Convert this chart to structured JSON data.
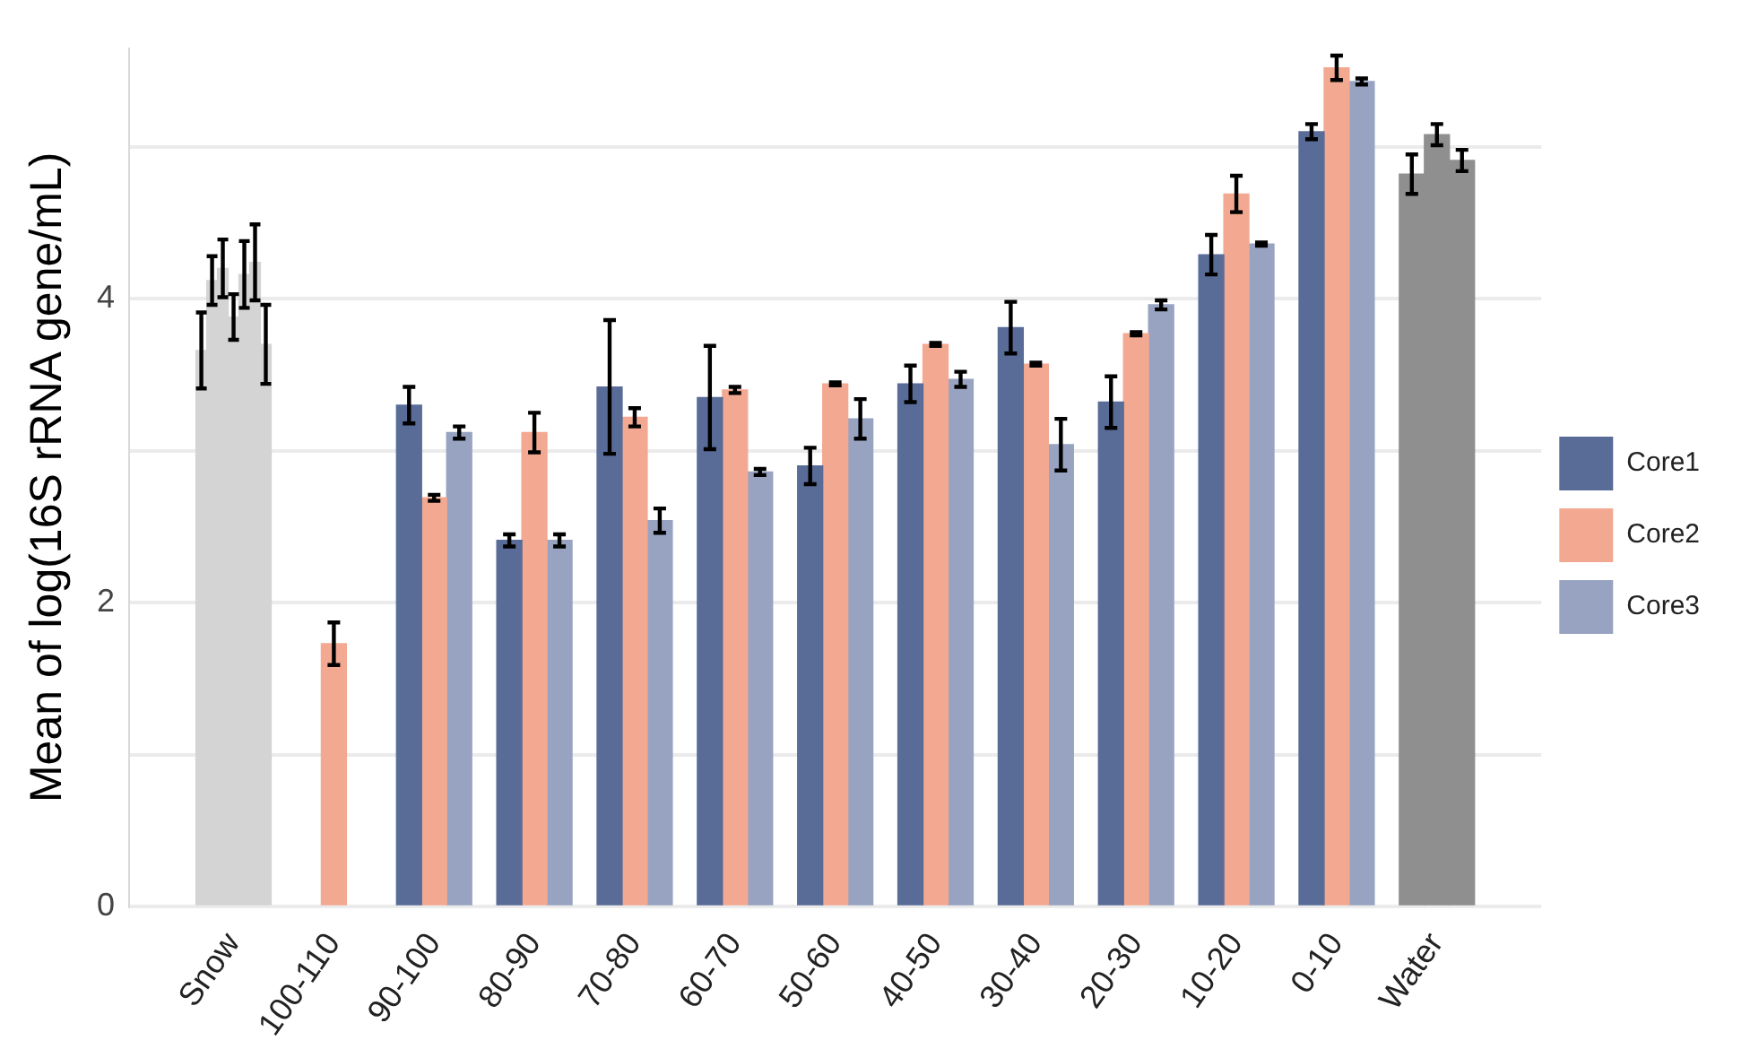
{
  "chart_data": {
    "type": "bar",
    "ylabel": "Mean of log(16S rRNA gene/mL)",
    "categories": [
      "Snow",
      "100-110",
      "90-100",
      "80-90",
      "70-80",
      "60-70",
      "50-60",
      "40-50",
      "30-40",
      "20-30",
      "10-20",
      "0-10",
      "Water"
    ],
    "series": [
      {
        "name": "Core1",
        "color": "#596c98",
        "colors": [
          null,
          null,
          "#596c98",
          "#596c98",
          "#596c98",
          "#596c98",
          "#596c98",
          "#596c98",
          "#596c98",
          "#596c98",
          "#596c98",
          "#596c98",
          "#8f8f8f"
        ],
        "values": [
          null,
          null,
          3.3,
          2.41,
          3.42,
          3.35,
          2.9,
          3.44,
          3.81,
          3.32,
          4.29,
          5.1,
          4.82
        ],
        "errors": [
          null,
          null,
          0.12,
          0.04,
          0.44,
          0.34,
          0.12,
          0.12,
          0.17,
          0.17,
          0.13,
          0.05,
          0.13
        ]
      },
      {
        "name": "Core2",
        "color": "#f3a991",
        "colors": [
          null,
          "#f3a991",
          "#f3a991",
          "#f3a991",
          "#f3a991",
          "#f3a991",
          "#f3a991",
          "#f3a991",
          "#f3a991",
          "#f3a991",
          "#f3a991",
          "#f3a991",
          "#8f8f8f"
        ],
        "values": [
          null,
          1.73,
          2.69,
          3.12,
          3.22,
          3.4,
          3.44,
          3.7,
          3.57,
          3.77,
          4.69,
          5.52,
          5.08
        ],
        "errors": [
          null,
          0.14,
          0.02,
          0.13,
          0.06,
          0.02,
          0.01,
          0.01,
          0.01,
          0.01,
          0.12,
          0.08,
          0.07
        ]
      },
      {
        "name": "Core3",
        "color": "#97a3c0",
        "colors": [
          null,
          null,
          "#97a3c0",
          "#97a3c0",
          "#97a3c0",
          "#97a3c0",
          "#97a3c0",
          "#97a3c0",
          "#97a3c0",
          "#97a3c0",
          "#97a3c0",
          "#97a3c0",
          "#8f8f8f"
        ],
        "values": [
          null,
          null,
          3.12,
          2.41,
          2.54,
          2.86,
          3.21,
          3.47,
          3.04,
          3.96,
          4.36,
          5.43,
          4.91
        ],
        "errors": [
          null,
          null,
          0.04,
          0.04,
          0.08,
          0.02,
          0.13,
          0.05,
          0.17,
          0.03,
          0.01,
          0.02,
          0.07
        ]
      },
      {
        "color": "#d4d4d4",
        "values": [
          3.66,
          null,
          null,
          null,
          null,
          null,
          null,
          null,
          null,
          null,
          null,
          null,
          null
        ],
        "errors": [
          0.25,
          null,
          null,
          null,
          null,
          null,
          null,
          null,
          null,
          null,
          null,
          null,
          null
        ]
      },
      {
        "color": "#d4d4d4",
        "values": [
          4.12,
          null,
          null,
          null,
          null,
          null,
          null,
          null,
          null,
          null,
          null,
          null,
          null
        ],
        "errors": [
          0.16,
          null,
          null,
          null,
          null,
          null,
          null,
          null,
          null,
          null,
          null,
          null,
          null
        ]
      },
      {
        "color": "#d4d4d4",
        "values": [
          4.2,
          null,
          null,
          null,
          null,
          null,
          null,
          null,
          null,
          null,
          null,
          null,
          null
        ],
        "errors": [
          0.19,
          null,
          null,
          null,
          null,
          null,
          null,
          null,
          null,
          null,
          null,
          null,
          null
        ]
      },
      {
        "color": "#d4d4d4",
        "values": [
          3.88,
          null,
          null,
          null,
          null,
          null,
          null,
          null,
          null,
          null,
          null,
          null,
          null
        ],
        "errors": [
          0.15,
          null,
          null,
          null,
          null,
          null,
          null,
          null,
          null,
          null,
          null,
          null,
          null
        ]
      },
      {
        "color": "#d4d4d4",
        "values": [
          4.16,
          null,
          null,
          null,
          null,
          null,
          null,
          null,
          null,
          null,
          null,
          null,
          null
        ],
        "errors": [
          0.22,
          null,
          null,
          null,
          null,
          null,
          null,
          null,
          null,
          null,
          null,
          null,
          null
        ]
      },
      {
        "color": "#d4d4d4",
        "values": [
          4.24,
          null,
          null,
          null,
          null,
          null,
          null,
          null,
          null,
          null,
          null,
          null,
          null
        ],
        "errors": [
          0.25,
          null,
          null,
          null,
          null,
          null,
          null,
          null,
          null,
          null,
          null,
          null,
          null
        ]
      },
      {
        "color": "#d4d4d4",
        "values": [
          3.7,
          null,
          null,
          null,
          null,
          null,
          null,
          null,
          null,
          null,
          null,
          null,
          null
        ],
        "errors": [
          0.26,
          null,
          null,
          null,
          null,
          null,
          null,
          null,
          null,
          null,
          null,
          null,
          null
        ]
      }
    ],
    "ylim": [
      0,
      5.65
    ],
    "yticks": [
      0,
      {
        "value": 1,
        "label": null
      },
      2,
      {
        "value": 3,
        "label": null
      },
      4,
      {
        "value": 5,
        "label": null
      }
    ],
    "grid": "y",
    "legend": "right"
  }
}
